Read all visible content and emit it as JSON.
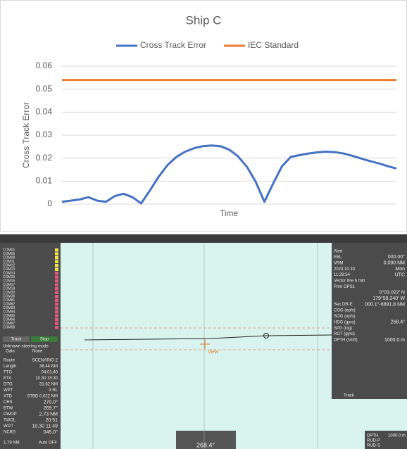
{
  "chart_data": {
    "type": "line",
    "title": "Ship C",
    "ylabel": "Cross Track Error",
    "xlabel": "Time",
    "ylim": [
      0,
      0.06
    ],
    "yticks": [
      0,
      0.01,
      0.02,
      0.03,
      0.04,
      0.05,
      0.06
    ],
    "grid": true,
    "legend": "top",
    "series": [
      {
        "name": "Cross Track Error",
        "color": "#4472c4",
        "values": [
          0.001,
          0.0015,
          0.002,
          0.003,
          0.0015,
          0.001,
          0.0035,
          0.0045,
          0.003,
          0.0003,
          0.006,
          0.012,
          0.017,
          0.0205,
          0.0228,
          0.0243,
          0.0252,
          0.0255,
          0.0252,
          0.0237,
          0.0208,
          0.0163,
          0.0098,
          0.001,
          0.009,
          0.0165,
          0.0205,
          0.0213,
          0.022,
          0.0225,
          0.0228,
          0.0226,
          0.022,
          0.021,
          0.0198,
          0.0187,
          0.0177,
          0.0165,
          0.0155
        ]
      },
      {
        "name": "IEC Standard",
        "color": "#ed7d31",
        "values": [
          0.054,
          0.054,
          0.054,
          0.054,
          0.054,
          0.054,
          0.054,
          0.054,
          0.054,
          0.054,
          0.054,
          0.054,
          0.054,
          0.054,
          0.054,
          0.054,
          0.054,
          0.054,
          0.054,
          0.054,
          0.054,
          0.054,
          0.054,
          0.054,
          0.054,
          0.054,
          0.054,
          0.054,
          0.054,
          0.054,
          0.054,
          0.054,
          0.054,
          0.054,
          0.054,
          0.054,
          0.054,
          0.054,
          0.054
        ]
      }
    ]
  },
  "ecdis": {
    "com_list": [
      {
        "name": "COM01",
        "color": "#f2e24a"
      },
      {
        "name": "COM05",
        "color": "#f2e24a"
      },
      {
        "name": "COM09",
        "color": "#f2e24a"
      },
      {
        "name": "COM11",
        "color": "#f2e24a"
      },
      {
        "name": "COM12",
        "color": "#f2e24a"
      },
      {
        "name": "COM13",
        "color": "#f2e24a"
      },
      {
        "name": "COM14",
        "color": "#e05a78"
      },
      {
        "name": "COM15",
        "color": "#e05a78"
      },
      {
        "name": "COM16",
        "color": "#e05a78"
      },
      {
        "name": "COM17",
        "color": "#e05a78"
      },
      {
        "name": "COM18",
        "color": "#e05a78"
      },
      {
        "name": "COM30",
        "color": "#e05a78"
      },
      {
        "name": "COM36",
        "color": "#e05a78"
      },
      {
        "name": "COM81",
        "color": "#e05a78"
      },
      {
        "name": "COM82",
        "color": "#e05a78"
      },
      {
        "name": "COM93",
        "color": "#e05a78"
      },
      {
        "name": "COM94",
        "color": "#e05a78"
      },
      {
        "name": "COM95",
        "color": "#e05a78"
      },
      {
        "name": "COM96",
        "color": "#e05a78"
      },
      {
        "name": "COM97",
        "color": "#e05a78"
      },
      {
        "name": "COM98",
        "color": "#e05a78"
      }
    ],
    "mode_buttons": [
      "Track",
      "Stop"
    ],
    "steering": "Unknown steering mode",
    "gain": [
      "Gain",
      "None"
    ],
    "left_panel": [
      [
        "Route",
        "SCENARIO 2"
      ],
      [
        "Length",
        "38.44 NM"
      ],
      [
        "TTG",
        "04:01:40"
      ],
      [
        "ETA",
        "10.30 15:30"
      ],
      [
        "DTG",
        "31.62 NM"
      ],
      [
        "WPT",
        "3  RL"
      ],
      [
        "XTD",
        "STBD 0.022 NM"
      ],
      [
        "CRS",
        "270.0°"
      ],
      [
        "BTW",
        "269.7°"
      ],
      [
        "DWOP",
        "2.73 NM"
      ],
      [
        "TWOL",
        "20:51"
      ],
      [
        "WOT",
        "10.30 11:49"
      ],
      [
        "NCRS",
        "045.0°"
      ]
    ],
    "bottom_left": [
      "1.79 NM",
      "Auto OFF"
    ],
    "right_panel": [
      [
        "Alert",
        ""
      ],
      [
        "EBL",
        "000.00°"
      ],
      [
        "VRM",
        "0.090 NM"
      ],
      [
        "2023.10.30",
        "Mon"
      ],
      [
        "11:28:54",
        "UTC"
      ],
      [
        "Vector line 6 min",
        ""
      ],
      [
        "Prim GPS1",
        ""
      ],
      [
        "",
        "0°03.022' N"
      ],
      [
        "",
        "179°58.240' W"
      ],
      [
        "Sec DR-E",
        "000.1°-6891.8 NM"
      ],
      [
        "COG (epfs)",
        ""
      ],
      [
        "SOG (epfs)",
        ""
      ],
      [
        "HDG (gyro)",
        "268.4°"
      ],
      [
        "SPD (log)",
        ""
      ],
      [
        "ROT (gyro)",
        ""
      ],
      [
        "DPTH (sndr)",
        "1000.0 m"
      ]
    ],
    "track_label": "Track",
    "view_label": "View",
    "heading": "268.4°",
    "bottom_right": [
      [
        "DPTH",
        "1000.0 m"
      ],
      [
        "RUD-P",
        ""
      ],
      [
        "RUD-S",
        ""
      ]
    ]
  }
}
